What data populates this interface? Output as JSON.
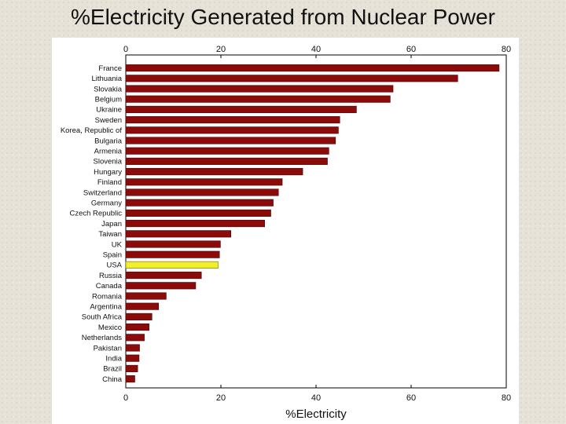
{
  "title": "%Electricity Generated from Nuclear Power",
  "colors": {
    "bar": "#8b0a0a",
    "highlight": "#f2ee2a",
    "background": "#e6e2d8"
  },
  "chart_data": {
    "type": "bar",
    "orientation": "horizontal",
    "xlabel": "%Electricity",
    "xlim": [
      0,
      80
    ],
    "xticks": [
      0,
      20,
      40,
      60,
      80
    ],
    "grid": false,
    "highlight": "USA",
    "categories": [
      "France",
      "Lithuania",
      "Slovakia",
      "Belgium",
      "Ukraine",
      "Sweden",
      "Korea, Republic of",
      "Bulgaria",
      "Armenia",
      "Slovenia",
      "Hungary",
      "Finland",
      "Switzerland",
      "Germany",
      "Czech Republic",
      "Japan",
      "Taiwan",
      "UK",
      "Spain",
      "USA",
      "Russia",
      "Canada",
      "Romania",
      "Argentina",
      "South Africa",
      "Mexico",
      "Netherlands",
      "Pakistan",
      "India",
      "Brazil",
      "China"
    ],
    "values": [
      78.5,
      69.8,
      56.2,
      55.6,
      48.5,
      45.0,
      44.7,
      44.1,
      42.7,
      42.4,
      37.2,
      32.9,
      32.1,
      31.0,
      30.5,
      29.2,
      22.1,
      19.9,
      19.7,
      19.4,
      15.9,
      14.7,
      8.5,
      6.9,
      5.5,
      4.9,
      3.9,
      2.9,
      2.8,
      2.5,
      1.9
    ]
  }
}
